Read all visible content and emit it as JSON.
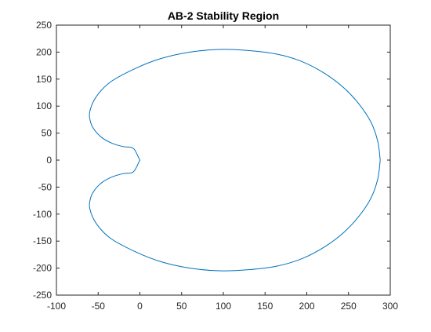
{
  "chart_data": {
    "type": "line",
    "title": "AB-2 Stability Region",
    "xlabel": "",
    "ylabel": "",
    "xlim": [
      -100,
      300
    ],
    "ylim": [
      -250,
      250
    ],
    "xticks": [
      -100,
      -50,
      0,
      50,
      100,
      150,
      200,
      250,
      300
    ],
    "yticks": [
      -250,
      -200,
      -150,
      -100,
      -50,
      0,
      50,
      100,
      150,
      200,
      250
    ],
    "grid": false,
    "legend": "none",
    "colors": {
      "line": "#0072bd",
      "axis": "#262626",
      "background": "#ffffff"
    },
    "series": [
      {
        "curve": "(3/2)*s*s/((3/2)*s-1/2) - 1/2*s*s/((3/2)*s-1/2) boundary locus",
        "points": [
          [
            288,
            0
          ],
          [
            285,
            35
          ],
          [
            277,
            70
          ],
          [
            263,
            103
          ],
          [
            245,
            133
          ],
          [
            222,
            160
          ],
          [
            195,
            182
          ],
          [
            165,
            196
          ],
          [
            130,
            203
          ],
          [
            95,
            205
          ],
          [
            60,
            200
          ],
          [
            25,
            188
          ],
          [
            -5,
            170
          ],
          [
            -35,
            145
          ],
          [
            -52,
            118
          ],
          [
            -60,
            90
          ],
          [
            -59,
            70
          ],
          [
            -54,
            55
          ],
          [
            -45,
            41
          ],
          [
            -33,
            31
          ],
          [
            -20,
            25
          ],
          [
            -8,
            22
          ],
          [
            -1,
            3
          ],
          [
            0,
            0
          ],
          [
            -1,
            -3
          ],
          [
            -8,
            -22
          ],
          [
            -20,
            -25
          ],
          [
            -33,
            -31
          ],
          [
            -45,
            -41
          ],
          [
            -54,
            -55
          ],
          [
            -59,
            -70
          ],
          [
            -60,
            -90
          ],
          [
            -52,
            -118
          ],
          [
            -35,
            -145
          ],
          [
            -5,
            -170
          ],
          [
            25,
            -188
          ],
          [
            60,
            -200
          ],
          [
            95,
            -205
          ],
          [
            130,
            -203
          ],
          [
            165,
            -196
          ],
          [
            195,
            -182
          ],
          [
            222,
            -160
          ],
          [
            245,
            -133
          ],
          [
            263,
            -103
          ],
          [
            277,
            -70
          ],
          [
            285,
            -35
          ],
          [
            288,
            0
          ]
        ]
      }
    ]
  }
}
